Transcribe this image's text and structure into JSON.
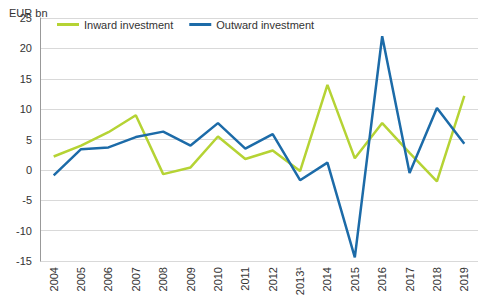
{
  "chart_data": {
    "type": "line",
    "y_label": "EUR bn",
    "categories": [
      "2004",
      "2005",
      "2006",
      "2007",
      "2008",
      "2009",
      "2010",
      "2011",
      "2012",
      "2013¹",
      "2014",
      "2015",
      "2016",
      "2017",
      "2018",
      "2019"
    ],
    "series": [
      {
        "name": "Inward investment",
        "color": "#b5d334",
        "values": [
          2.2,
          4.0,
          6.2,
          9.0,
          -0.7,
          0.4,
          5.5,
          1.8,
          3.2,
          -0.2,
          14.0,
          1.9,
          7.7,
          2.8,
          -1.9,
          12.2
        ]
      },
      {
        "name": "Outward investment",
        "color": "#1c6ba8",
        "values": [
          -0.9,
          3.4,
          3.7,
          5.4,
          6.3,
          4.0,
          7.7,
          3.5,
          5.9,
          -1.7,
          1.2,
          -14.4,
          22.0,
          -0.5,
          10.2,
          4.3
        ]
      }
    ],
    "ylim": [
      -15,
      25
    ],
    "yticks": [
      -15,
      -10,
      -5,
      0,
      5,
      10,
      15,
      20,
      25
    ],
    "grid": true,
    "legend": "upper left"
  }
}
